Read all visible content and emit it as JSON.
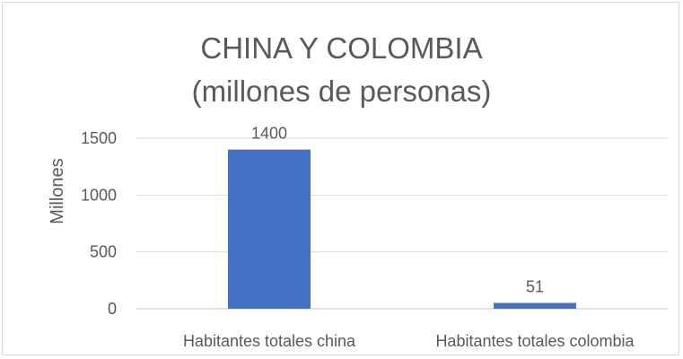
{
  "chart_data": {
    "type": "bar",
    "title_lines": [
      "CHINA Y COLOMBIA",
      "(millones de personas)"
    ],
    "categories": [
      "Habitantes totales china",
      "Habitantes totales colombia"
    ],
    "values": [
      1400,
      51
    ],
    "data_labels": [
      "1400",
      "51"
    ],
    "ylabel": "Millones",
    "xlabel": "",
    "ylim": [
      0,
      1500
    ],
    "y_ticks": [
      0,
      500,
      1000,
      1500
    ],
    "y_tick_labels": [
      "0",
      "500",
      "1000",
      "1500"
    ],
    "grid": true,
    "legend": false,
    "colors": {
      "bar": "#4472c4",
      "grid": "#d9d9d9",
      "text": "#595959",
      "axis": "#bfbfbf"
    }
  }
}
